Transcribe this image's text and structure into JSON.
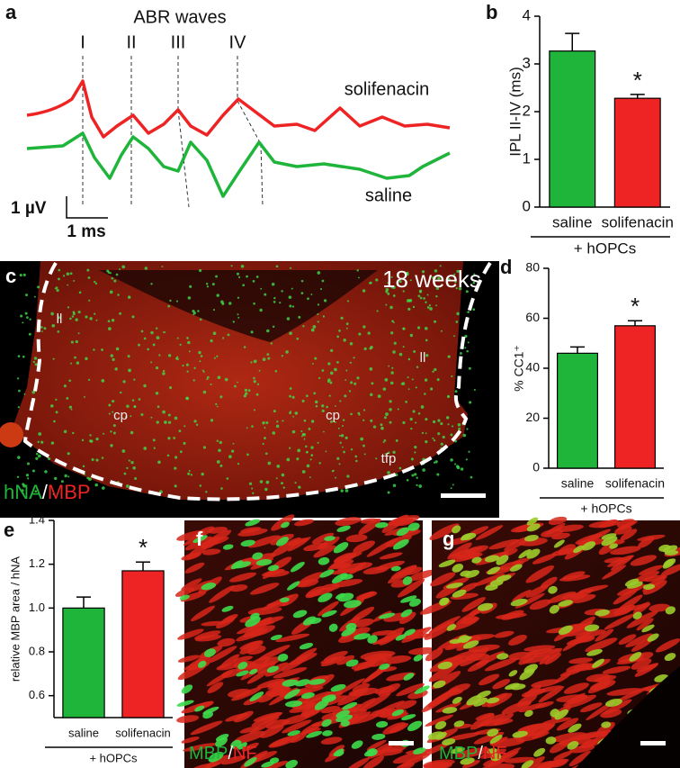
{
  "panels": {
    "a": {
      "label": "a",
      "title": "ABR waves",
      "waves": [
        "I",
        "II",
        "III",
        "IV"
      ],
      "traces": [
        "solifenacin",
        "saline"
      ],
      "scale_y": "1 µV",
      "scale_x": "1 ms"
    },
    "c": {
      "label": "c",
      "time": "18 weeks",
      "regions": [
        "ll",
        "ll",
        "cp",
        "cp",
        "tfp"
      ],
      "stain": [
        "hNA",
        "/",
        "MBP"
      ]
    },
    "f": {
      "label": "f",
      "stain": [
        "MBP",
        "/",
        "NF"
      ]
    },
    "g": {
      "label": "g",
      "stain": [
        "MBP",
        "/",
        "NF"
      ]
    }
  },
  "chart_data": [
    {
      "type": "bar",
      "panel": "b",
      "ylabel": "IPL II-IV (ms)",
      "categories": [
        "saline",
        "solifenacin"
      ],
      "values": [
        3.27,
        2.28
      ],
      "errors": [
        0.37,
        0.08
      ],
      "colors": [
        "#1eb53a",
        "#ee2424"
      ],
      "ylim": [
        0,
        4
      ],
      "yticks": [
        0,
        1,
        2,
        3,
        4
      ],
      "annotation": "*",
      "group_label": "+ hOPCs"
    },
    {
      "type": "bar",
      "panel": "d",
      "ylabel": "% CC1⁺",
      "categories": [
        "saline",
        "solifenacin"
      ],
      "values": [
        46,
        57
      ],
      "errors": [
        2.5,
        2
      ],
      "colors": [
        "#1eb53a",
        "#ee2424"
      ],
      "ylim": [
        0,
        80
      ],
      "yticks": [
        0,
        20,
        40,
        60,
        80
      ],
      "annotation": "*",
      "group_label": "+ hOPCs"
    },
    {
      "type": "bar",
      "panel": "e",
      "ylabel": "relative MBP area / hNA",
      "categories": [
        "saline",
        "solifenacin"
      ],
      "values": [
        1.0,
        1.17
      ],
      "errors": [
        0.05,
        0.04
      ],
      "colors": [
        "#1eb53a",
        "#ee2424"
      ],
      "ylim": [
        0.5,
        1.4
      ],
      "yticks": [
        0.6,
        0.8,
        {
          "value": 1,
          "label": "1.0"
        },
        1.2,
        1.4
      ],
      "annotation": "*",
      "group_label": "+ hOPCs"
    }
  ]
}
